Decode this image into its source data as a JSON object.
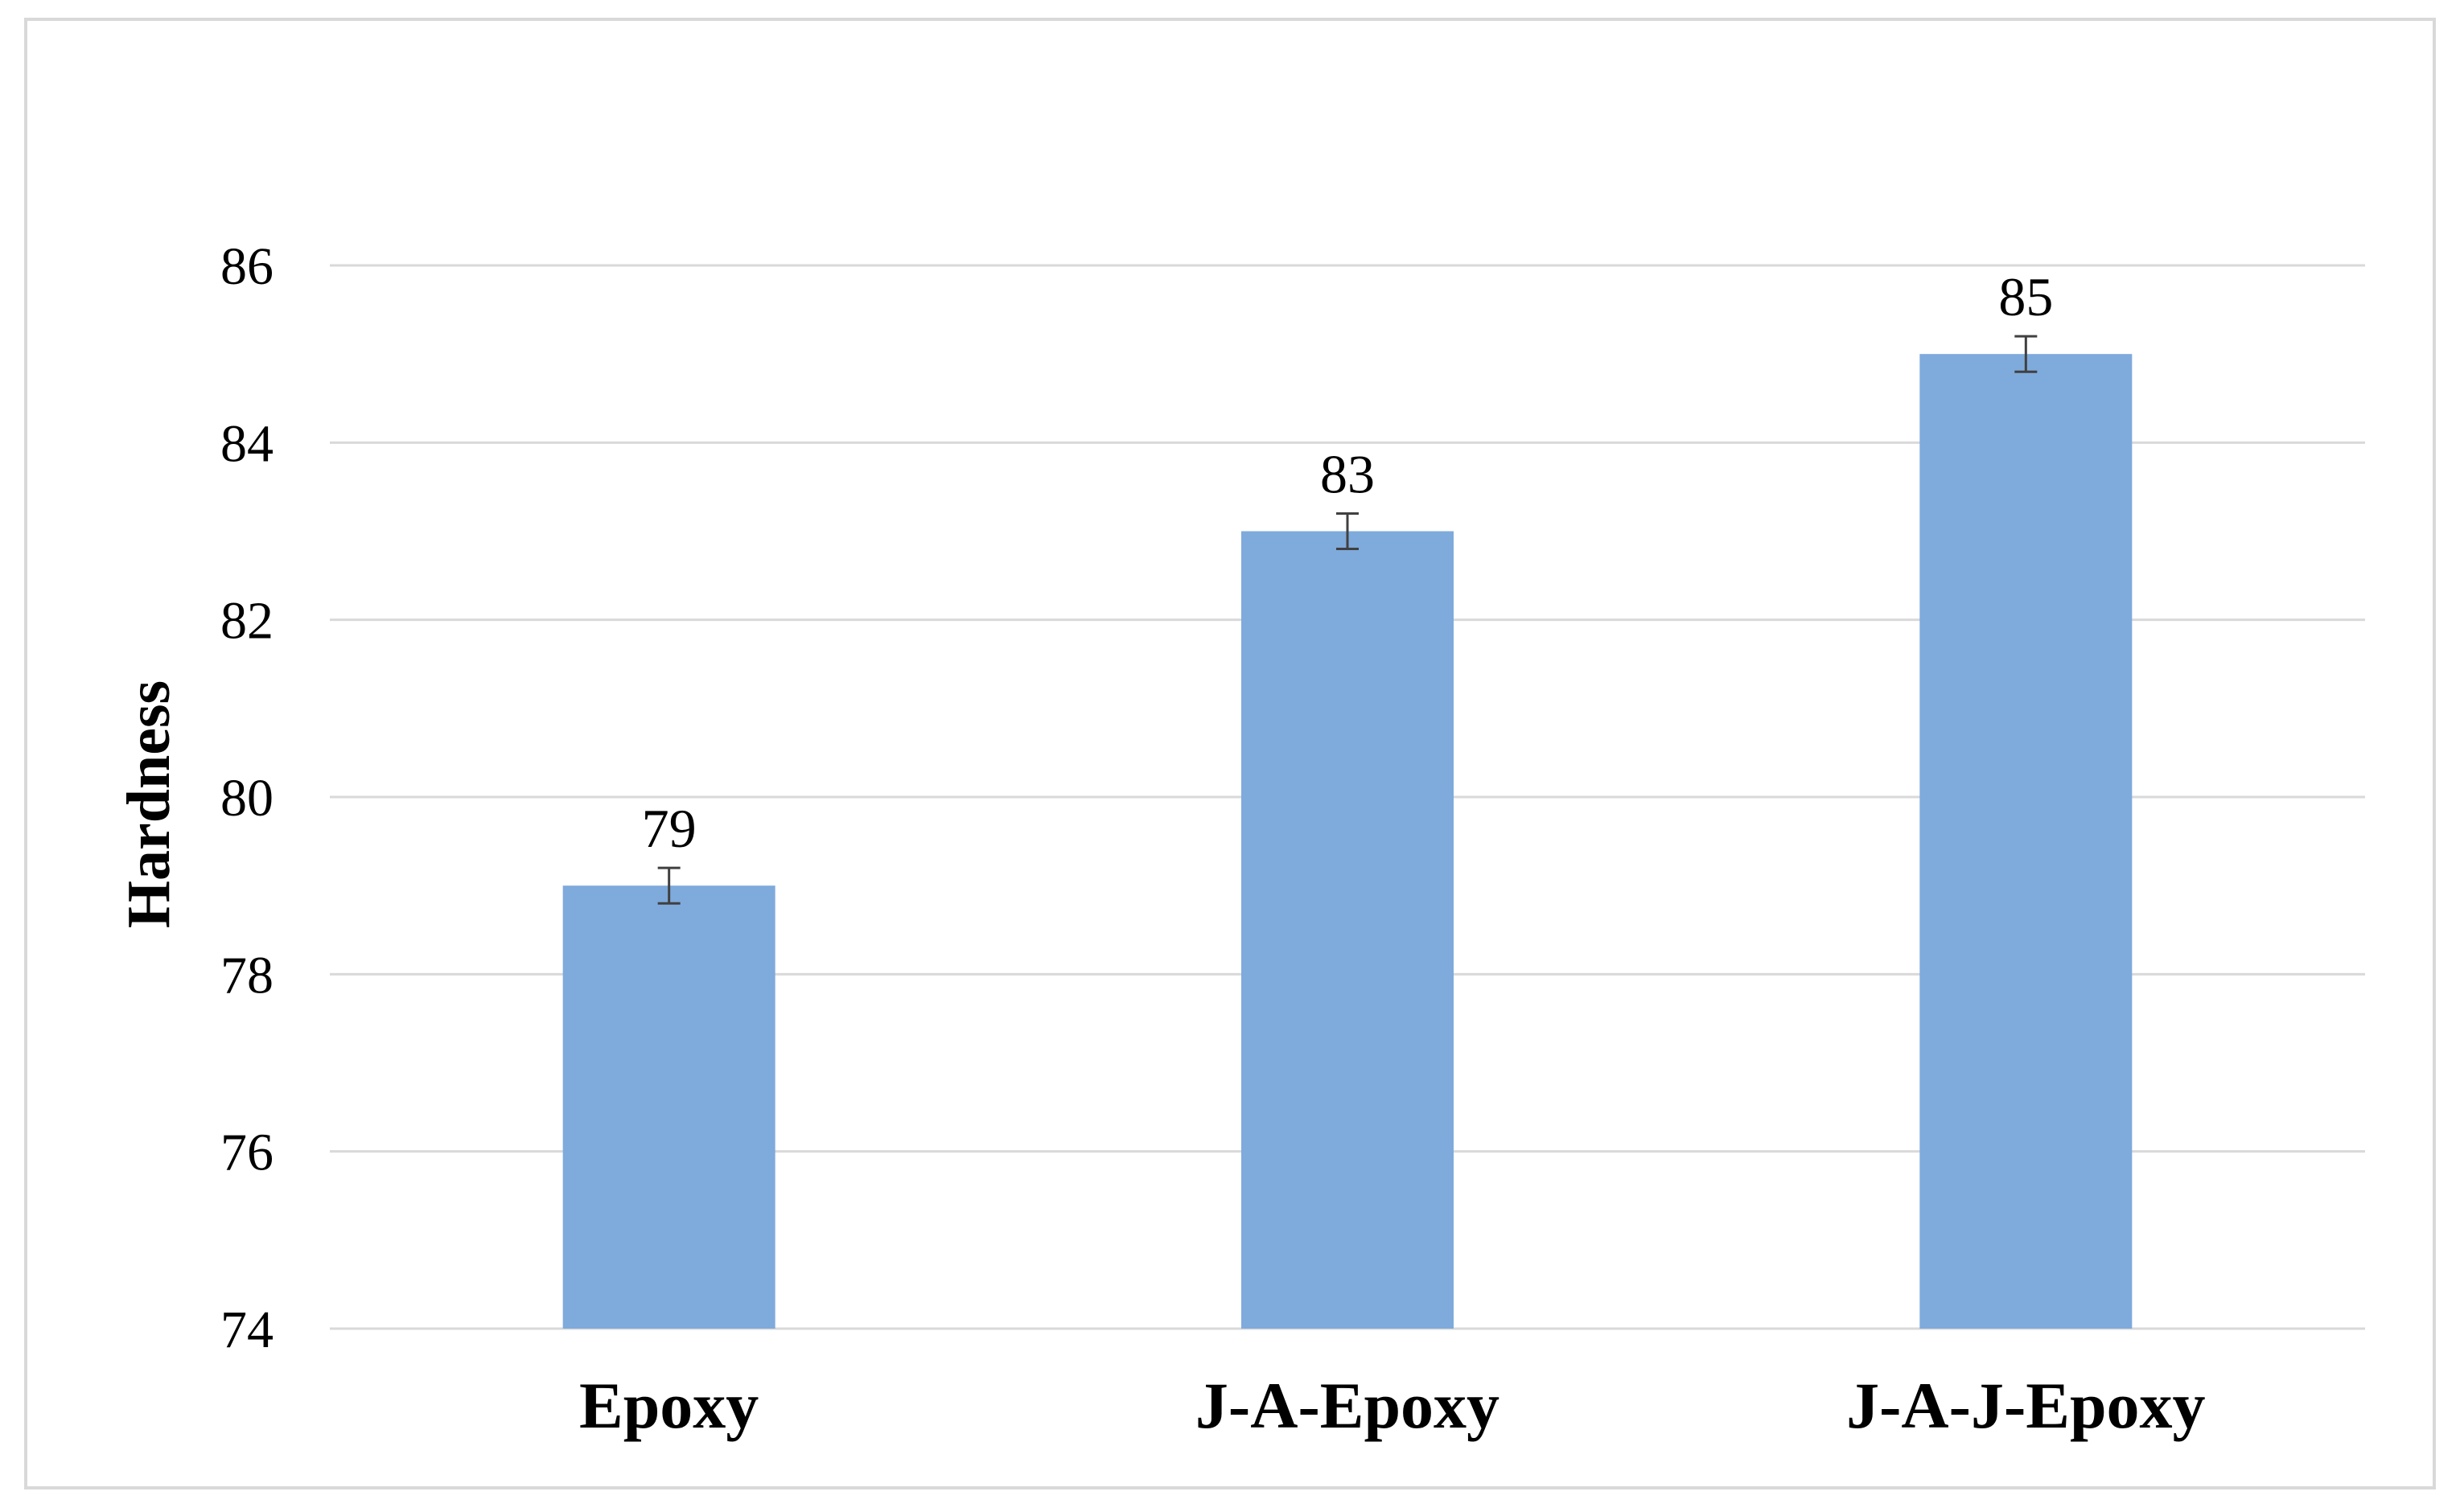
{
  "chart_data": {
    "type": "bar",
    "title": "",
    "xlabel": "",
    "ylabel": "Hardness",
    "categories": [
      "Epoxy",
      "J-A-Epoxy",
      "J-A-J-Epoxy"
    ],
    "values": [
      79,
      83,
      85
    ],
    "error": [
      0.2,
      0.2,
      0.2
    ],
    "data_labels": [
      "79",
      "83",
      "85"
    ],
    "ylim": [
      74,
      86
    ],
    "yticks": [
      74,
      76,
      78,
      80,
      82,
      84,
      86
    ],
    "grid": true,
    "legend": "none",
    "colors": {
      "bar": "#7faadc",
      "grid": "#d9d9d9",
      "error_bar": "#404040",
      "frame": "#d9d9d9"
    }
  }
}
